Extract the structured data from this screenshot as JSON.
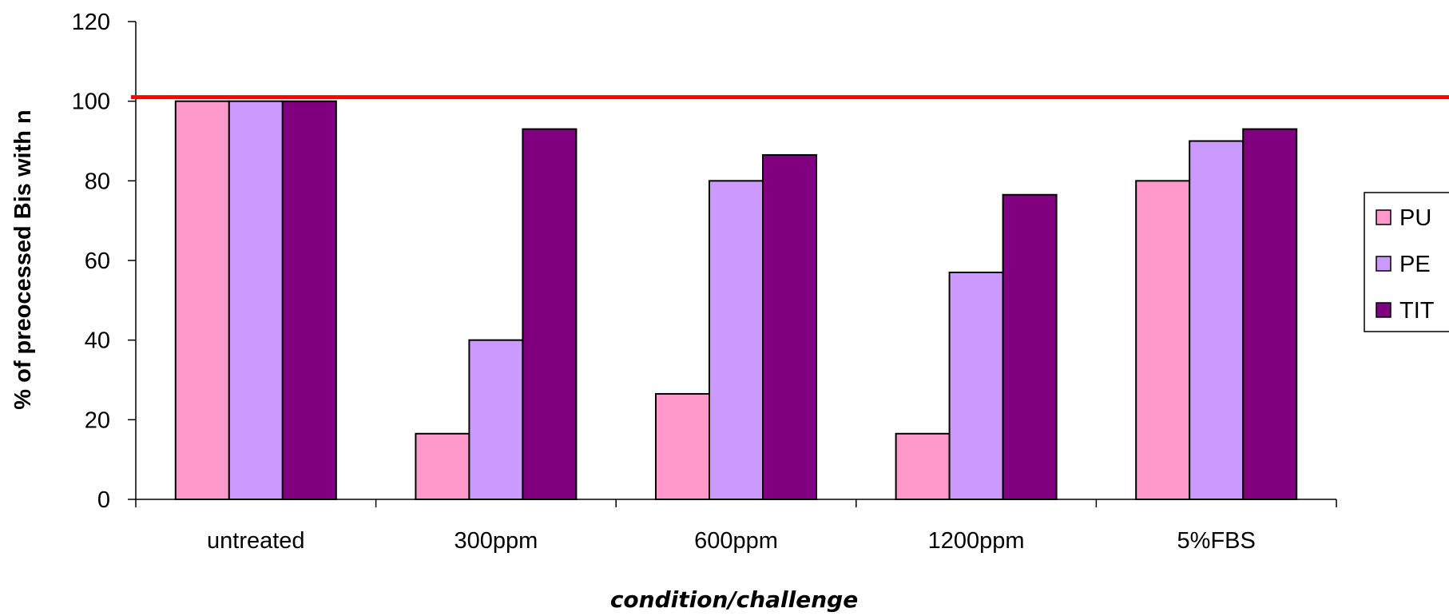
{
  "chart_data": {
    "type": "bar",
    "title": "",
    "xlabel": "condition/challenge",
    "ylabel": "% of preocessed Bis with n",
    "categories": [
      "untreated",
      "300ppm",
      "600ppm",
      "1200ppm",
      "5%FBS"
    ],
    "series": [
      {
        "name": "PU",
        "color": "#FF99CC",
        "values": [
          100,
          16.5,
          26.5,
          16.5,
          80
        ]
      },
      {
        "name": "PE",
        "color": "#CC99FF",
        "values": [
          100,
          40,
          80,
          57,
          90
        ]
      },
      {
        "name": "TIT",
        "color": "#800080",
        "values": [
          100,
          93,
          86.5,
          76.5,
          93
        ]
      }
    ],
    "ylim": [
      0,
      120
    ],
    "yticks": [
      "0",
      "20",
      "40",
      "60",
      "80",
      "100",
      "120"
    ],
    "reference_line": {
      "y": 101,
      "color": "#FF0000"
    },
    "grid": false,
    "legend": "right"
  }
}
